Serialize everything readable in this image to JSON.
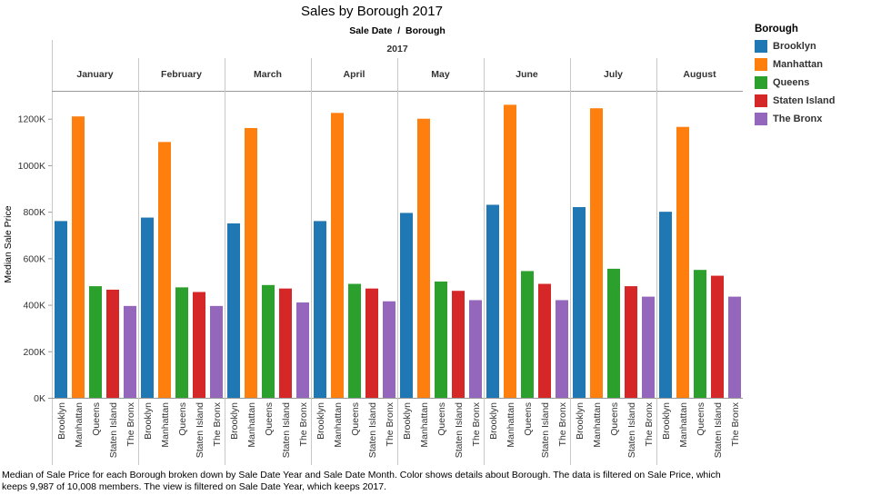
{
  "chart_data": {
    "type": "bar",
    "title": "Sales by Borough 2017",
    "header_row": "Sale Date  /  Borough",
    "year": "2017",
    "ylabel": "Median Sale Price",
    "ylim": [
      0,
      1320000
    ],
    "yticks": [
      0,
      200000,
      400000,
      600000,
      800000,
      1000000,
      1200000
    ],
    "ytick_labels": [
      "0K",
      "200K",
      "400K",
      "600K",
      "800K",
      "1000K",
      "1200K"
    ],
    "months": [
      "January",
      "February",
      "March",
      "April",
      "May",
      "June",
      "July",
      "August"
    ],
    "categories": [
      "Brooklyn",
      "Manhattan",
      "Queens",
      "Staten Island",
      "The Bronx"
    ],
    "colors": [
      "#1f77b4",
      "#ff7f0e",
      "#2ca02c",
      "#d62728",
      "#9467bd"
    ],
    "grid": false,
    "legend_position": "right",
    "series": [
      {
        "month": "January",
        "values": [
          760000,
          1210000,
          480000,
          465000,
          395000
        ]
      },
      {
        "month": "February",
        "values": [
          775000,
          1100000,
          475000,
          455000,
          395000
        ]
      },
      {
        "month": "March",
        "values": [
          750000,
          1160000,
          485000,
          470000,
          410000
        ]
      },
      {
        "month": "April",
        "values": [
          760000,
          1225000,
          490000,
          470000,
          415000
        ]
      },
      {
        "month": "May",
        "values": [
          795000,
          1200000,
          500000,
          460000,
          420000
        ]
      },
      {
        "month": "June",
        "values": [
          830000,
          1260000,
          545000,
          490000,
          420000
        ]
      },
      {
        "month": "July",
        "values": [
          820000,
          1245000,
          555000,
          480000,
          435000
        ]
      },
      {
        "month": "August",
        "values": [
          800000,
          1165000,
          550000,
          525000,
          435000
        ]
      }
    ]
  },
  "legend": {
    "title": "Borough",
    "items": [
      "Brooklyn",
      "Manhattan",
      "Queens",
      "Staten Island",
      "The Bronx"
    ]
  },
  "caption": "Median of Sale Price for each Borough broken down by Sale Date Year and Sale Date Month.  Color shows details about Borough. The data is filtered on Sale Price, which keeps 9,987 of 10,008 members. The view is filtered on Sale Date Year, which keeps 2017."
}
